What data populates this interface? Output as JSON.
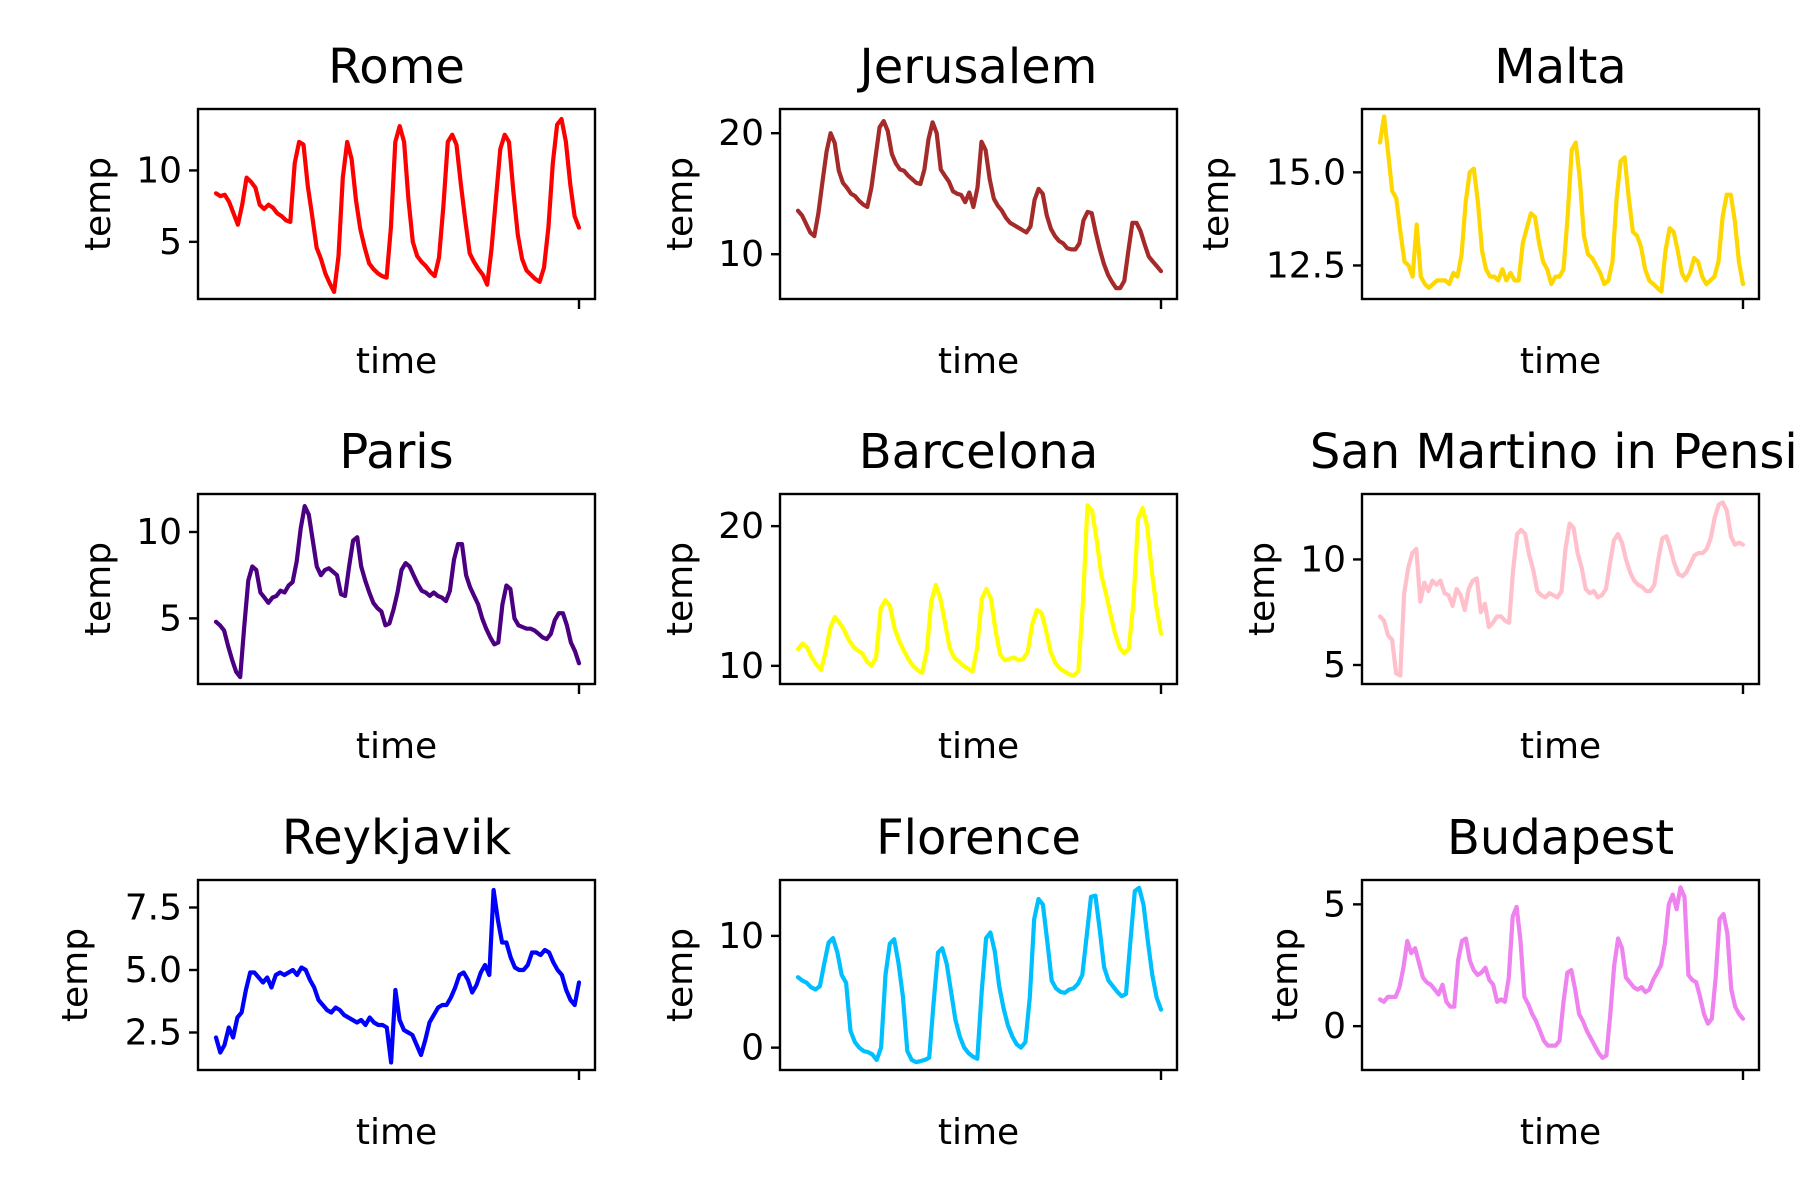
{
  "chart_data": [
    {
      "type": "line",
      "title": "Rome",
      "xlabel": "time",
      "ylabel": "temp",
      "color": "#ff0000",
      "ylim": [
        1,
        14.3
      ],
      "yticks": [
        5,
        10
      ],
      "ytick_labels": [
        "5",
        "10"
      ],
      "values": [
        8.4,
        8.2,
        8.3,
        7.8,
        7.0,
        6.2,
        7.6,
        9.5,
        9.2,
        8.8,
        7.6,
        7.3,
        7.6,
        7.4,
        7.0,
        6.8,
        6.5,
        6.4,
        10.5,
        12.0,
        11.8,
        8.9,
        6.8,
        4.6,
        3.8,
        2.8,
        2.1,
        1.5,
        4.0,
        9.5,
        12.0,
        10.8,
        7.9,
        5.9,
        4.6,
        3.5,
        3.1,
        2.8,
        2.6,
        2.5,
        6.0,
        12.0,
        13.1,
        12.0,
        8.0,
        5.0,
        4.0,
        3.6,
        3.3,
        2.9,
        2.6,
        3.9,
        7.5,
        12.0,
        12.5,
        11.8,
        9.0,
        6.5,
        4.2,
        3.6,
        3.1,
        2.7,
        2.0,
        4.5,
        8.0,
        11.5,
        12.5,
        12.0,
        8.5,
        5.5,
        3.8,
        3.0,
        2.7,
        2.4,
        2.2,
        3.2,
        6.0,
        10.5,
        13.2,
        13.6,
        12.0,
        9.0,
        6.8,
        6.0
      ]
    },
    {
      "type": "line",
      "title": "Jerusalem",
      "xlabel": "time",
      "ylabel": "temp",
      "color": "#a52a2a",
      "ylim": [
        6.3,
        22
      ],
      "yticks": [
        10,
        20
      ],
      "ytick_labels": [
        "10",
        "20"
      ],
      "values": [
        13.6,
        13.2,
        12.5,
        11.8,
        11.5,
        13.4,
        16.0,
        18.5,
        20.0,
        19.2,
        16.9,
        15.9,
        15.5,
        15.0,
        14.8,
        14.4,
        14.1,
        13.9,
        15.5,
        18.0,
        20.5,
        21.0,
        20.2,
        18.3,
        17.5,
        17.0,
        16.9,
        16.5,
        16.2,
        15.9,
        15.8,
        17.0,
        19.5,
        20.9,
        20.0,
        17.0,
        16.5,
        16.0,
        15.2,
        15.0,
        14.9,
        14.3,
        15.1,
        13.9,
        15.5,
        19.3,
        18.6,
        16.2,
        14.6,
        14.0,
        13.6,
        13.0,
        12.6,
        12.4,
        12.2,
        12.0,
        11.8,
        12.3,
        14.5,
        15.4,
        15.0,
        13.2,
        12.1,
        11.5,
        11.1,
        10.9,
        10.5,
        10.4,
        10.4,
        10.9,
        12.8,
        13.5,
        13.4,
        11.8,
        10.4,
        9.2,
        8.3,
        7.7,
        7.2,
        7.2,
        7.8,
        10.3,
        12.6,
        12.6,
        11.9,
        10.8,
        9.8,
        9.4,
        9.0,
        8.6
      ]
    },
    {
      "type": "line",
      "title": "Malta",
      "xlabel": "time",
      "ylabel": "temp",
      "color": "#ffd700",
      "ylim": [
        11.6,
        16.7
      ],
      "yticks": [
        12.5,
        15.0
      ],
      "ytick_labels": [
        "12.5",
        "15.0"
      ],
      "values": [
        15.8,
        16.5,
        15.5,
        14.5,
        14.3,
        13.4,
        12.6,
        12.5,
        12.2,
        13.6,
        12.2,
        12.0,
        11.9,
        12.0,
        12.1,
        12.1,
        12.1,
        12.0,
        12.3,
        12.2,
        12.8,
        14.2,
        15.0,
        15.1,
        14.2,
        12.9,
        12.4,
        12.2,
        12.2,
        12.1,
        12.4,
        12.1,
        12.3,
        12.1,
        12.1,
        13.1,
        13.5,
        13.9,
        13.8,
        13.1,
        12.6,
        12.4,
        12.0,
        12.2,
        12.2,
        12.4,
        13.8,
        15.6,
        15.8,
        14.8,
        13.3,
        12.8,
        12.7,
        12.5,
        12.3,
        12.0,
        12.1,
        12.6,
        14.3,
        15.3,
        15.4,
        14.3,
        13.4,
        13.3,
        13.0,
        12.4,
        12.1,
        12.0,
        11.9,
        11.8,
        12.9,
        13.5,
        13.4,
        12.9,
        12.3,
        12.1,
        12.3,
        12.7,
        12.6,
        12.2,
        12.0,
        12.1,
        12.2,
        12.6,
        13.8,
        14.4,
        14.4,
        13.7,
        12.6,
        12.0
      ]
    },
    {
      "type": "line",
      "title": "Paris",
      "xlabel": "time",
      "ylabel": "temp",
      "color": "#4b0082",
      "ylim": [
        1.2,
        12.2
      ],
      "yticks": [
        5,
        10
      ],
      "ytick_labels": [
        "5",
        "10"
      ],
      "values": [
        4.8,
        4.6,
        4.3,
        3.4,
        2.6,
        1.9,
        1.6,
        4.5,
        7.2,
        8.0,
        7.8,
        6.5,
        6.2,
        5.9,
        6.2,
        6.3,
        6.6,
        6.5,
        6.9,
        7.1,
        8.3,
        10.2,
        11.5,
        11.0,
        9.5,
        8.0,
        7.5,
        7.8,
        7.9,
        7.7,
        7.5,
        6.4,
        6.3,
        8.0,
        9.5,
        9.7,
        8.0,
        7.2,
        6.5,
        5.9,
        5.6,
        5.4,
        4.6,
        4.7,
        5.5,
        6.5,
        7.8,
        8.2,
        8.0,
        7.5,
        7.0,
        6.6,
        6.5,
        6.3,
        6.5,
        6.3,
        6.2,
        6.0,
        6.6,
        8.4,
        9.3,
        9.3,
        7.5,
        6.8,
        6.3,
        5.8,
        5.0,
        4.4,
        3.9,
        3.5,
        3.6,
        5.8,
        6.9,
        6.7,
        5.0,
        4.6,
        4.5,
        4.4,
        4.4,
        4.3,
        4.1,
        3.9,
        3.8,
        4.1,
        4.9,
        5.3,
        5.3,
        4.6,
        3.6,
        3.1,
        2.4
      ]
    },
    {
      "type": "line",
      "title": "Barcelona",
      "xlabel": "time",
      "ylabel": "temp",
      "color": "#ffff00",
      "ylim": [
        8.7,
        22.3
      ],
      "yticks": [
        10,
        20
      ],
      "ytick_labels": [
        "10",
        "20"
      ],
      "values": [
        11.2,
        11.6,
        11.3,
        10.6,
        10.1,
        9.7,
        11.0,
        12.7,
        13.5,
        13.1,
        12.6,
        11.9,
        11.4,
        11.1,
        10.9,
        10.3,
        10.0,
        10.6,
        14.1,
        14.7,
        14.3,
        12.7,
        11.8,
        11.1,
        10.5,
        10.0,
        9.7,
        9.5,
        11.0,
        14.6,
        15.8,
        14.8,
        13.1,
        11.3,
        10.6,
        10.3,
        10.0,
        9.8,
        9.6,
        11.3,
        14.8,
        15.5,
        14.8,
        12.5,
        10.8,
        10.4,
        10.5,
        10.6,
        10.4,
        10.5,
        11.0,
        13.0,
        14.0,
        13.8,
        12.5,
        11.0,
        10.2,
        9.8,
        9.6,
        9.4,
        9.3,
        9.6,
        14.5,
        21.5,
        21.1,
        19.0,
        16.5,
        15.2,
        13.7,
        12.3,
        11.3,
        10.9,
        11.2,
        14.5,
        20.5,
        21.3,
        20.0,
        16.8,
        14.2,
        12.3
      ]
    },
    {
      "type": "line",
      "title": "San Martino in Pensil",
      "xlabel": "time",
      "ylabel": "temp",
      "color": "#ffc0cb",
      "ylim": [
        4.1,
        13.1
      ],
      "yticks": [
        5,
        10
      ],
      "ytick_labels": [
        "5",
        "10"
      ],
      "values": [
        7.3,
        7.1,
        6.4,
        6.2,
        4.6,
        4.5,
        8.4,
        9.6,
        10.3,
        10.5,
        8.0,
        8.9,
        8.5,
        9.0,
        8.8,
        9.0,
        8.4,
        8.3,
        7.8,
        8.6,
        8.3,
        7.6,
        8.6,
        9.0,
        9.1,
        7.5,
        7.9,
        6.8,
        7.0,
        7.3,
        7.3,
        7.1,
        7.0,
        9.5,
        11.2,
        11.4,
        11.2,
        10.2,
        9.5,
        8.5,
        8.3,
        8.2,
        8.4,
        8.3,
        8.2,
        8.5,
        10.5,
        11.7,
        11.5,
        10.3,
        9.6,
        8.6,
        8.4,
        8.5,
        8.2,
        8.3,
        8.6,
        9.8,
        10.9,
        11.2,
        10.8,
        10.0,
        9.4,
        9.0,
        8.8,
        8.7,
        8.5,
        8.5,
        8.8,
        10.0,
        11.0,
        11.1,
        10.5,
        9.8,
        9.3,
        9.2,
        9.4,
        9.8,
        10.2,
        10.3,
        10.3,
        10.5,
        11.0,
        12.0,
        12.6,
        12.7,
        12.3,
        11.1,
        10.7,
        10.8,
        10.7
      ]
    },
    {
      "type": "line",
      "title": "Reykjavik",
      "xlabel": "time",
      "ylabel": "temp",
      "color": "#0000ff",
      "ylim": [
        1.0,
        8.6
      ],
      "yticks": [
        2.5,
        5.0,
        7.5
      ],
      "ytick_labels": [
        "2.5",
        "5.0",
        "7.5"
      ],
      "values": [
        2.3,
        1.7,
        2.0,
        2.7,
        2.3,
        3.1,
        3.3,
        4.2,
        4.9,
        4.9,
        4.7,
        4.5,
        4.7,
        4.3,
        4.8,
        4.9,
        4.8,
        4.9,
        5.0,
        4.8,
        5.1,
        5.0,
        4.6,
        4.3,
        3.8,
        3.6,
        3.4,
        3.3,
        3.5,
        3.4,
        3.2,
        3.1,
        3.0,
        2.9,
        3.0,
        2.8,
        3.1,
        2.9,
        2.8,
        2.8,
        2.7,
        1.3,
        4.2,
        3.0,
        2.6,
        2.5,
        2.4,
        2.0,
        1.6,
        2.2,
        2.9,
        3.2,
        3.5,
        3.6,
        3.6,
        3.9,
        4.3,
        4.8,
        4.9,
        4.6,
        4.1,
        4.4,
        4.9,
        5.2,
        4.8,
        8.2,
        7.0,
        6.1,
        6.1,
        5.5,
        5.1,
        5.0,
        5.0,
        5.2,
        5.7,
        5.7,
        5.6,
        5.8,
        5.7,
        5.3,
        5.0,
        4.8,
        4.2,
        3.8,
        3.6,
        4.5
      ]
    },
    {
      "type": "line",
      "title": "Florence",
      "xlabel": "time",
      "ylabel": "temp",
      "color": "#00bfff",
      "ylim": [
        -2,
        15
      ],
      "yticks": [
        0,
        10
      ],
      "ytick_labels": [
        "0",
        "10"
      ],
      "values": [
        6.3,
        6.0,
        5.8,
        5.4,
        5.2,
        5.5,
        7.5,
        9.4,
        9.8,
        8.5,
        6.5,
        5.8,
        1.5,
        0.5,
        0.0,
        -0.3,
        -0.4,
        -0.6,
        -1.1,
        0.0,
        6.5,
        9.3,
        9.7,
        7.5,
        4.5,
        -0.3,
        -1.1,
        -1.3,
        -1.2,
        -1.1,
        -0.9,
        4.0,
        8.5,
        8.9,
        7.5,
        5.0,
        2.5,
        1.0,
        0.0,
        -0.5,
        -0.8,
        -1.0,
        5.0,
        9.8,
        10.3,
        8.6,
        5.5,
        3.5,
        2.0,
        1.0,
        0.3,
        0.0,
        0.5,
        4.5,
        11.5,
        13.3,
        12.8,
        9.5,
        6.0,
        5.3,
        5.0,
        4.9,
        5.2,
        5.3,
        5.7,
        6.5,
        10.0,
        13.5,
        13.6,
        10.5,
        7.2,
        6.0,
        5.5,
        5.0,
        4.6,
        4.8,
        9.5,
        14.0,
        14.3,
        12.8,
        9.5,
        6.5,
        4.5,
        3.4
      ]
    },
    {
      "type": "line",
      "title": "Budapest",
      "xlabel": "time",
      "ylabel": "temp",
      "color": "#ee82ee",
      "ylim": [
        -1.8,
        6
      ],
      "yticks": [
        0,
        5
      ],
      "ytick_labels": [
        "0",
        "5"
      ],
      "values": [
        1.1,
        1.0,
        1.2,
        1.2,
        1.2,
        1.6,
        2.4,
        3.5,
        3.0,
        3.2,
        2.6,
        2.0,
        1.8,
        1.7,
        1.5,
        1.3,
        1.7,
        1.0,
        0.8,
        0.8,
        2.7,
        3.5,
        3.6,
        2.7,
        2.3,
        2.1,
        2.2,
        2.4,
        1.9,
        1.7,
        1.0,
        1.1,
        1.0,
        2.0,
        4.5,
        4.9,
        3.5,
        1.2,
        0.9,
        0.5,
        0.2,
        -0.2,
        -0.6,
        -0.8,
        -0.8,
        -0.8,
        -0.6,
        1.0,
        2.2,
        2.3,
        1.5,
        0.5,
        0.2,
        -0.2,
        -0.5,
        -0.8,
        -1.1,
        -1.3,
        -1.2,
        0.5,
        2.5,
        3.6,
        3.2,
        2.0,
        1.8,
        1.6,
        1.5,
        1.6,
        1.4,
        1.5,
        1.9,
        2.2,
        2.5,
        3.4,
        5.0,
        5.4,
        4.8,
        5.7,
        5.3,
        2.1,
        1.9,
        1.8,
        1.2,
        0.5,
        0.1,
        0.3,
        2.0,
        4.4,
        4.6,
        3.8,
        1.5,
        0.8,
        0.5,
        0.3
      ]
    }
  ]
}
